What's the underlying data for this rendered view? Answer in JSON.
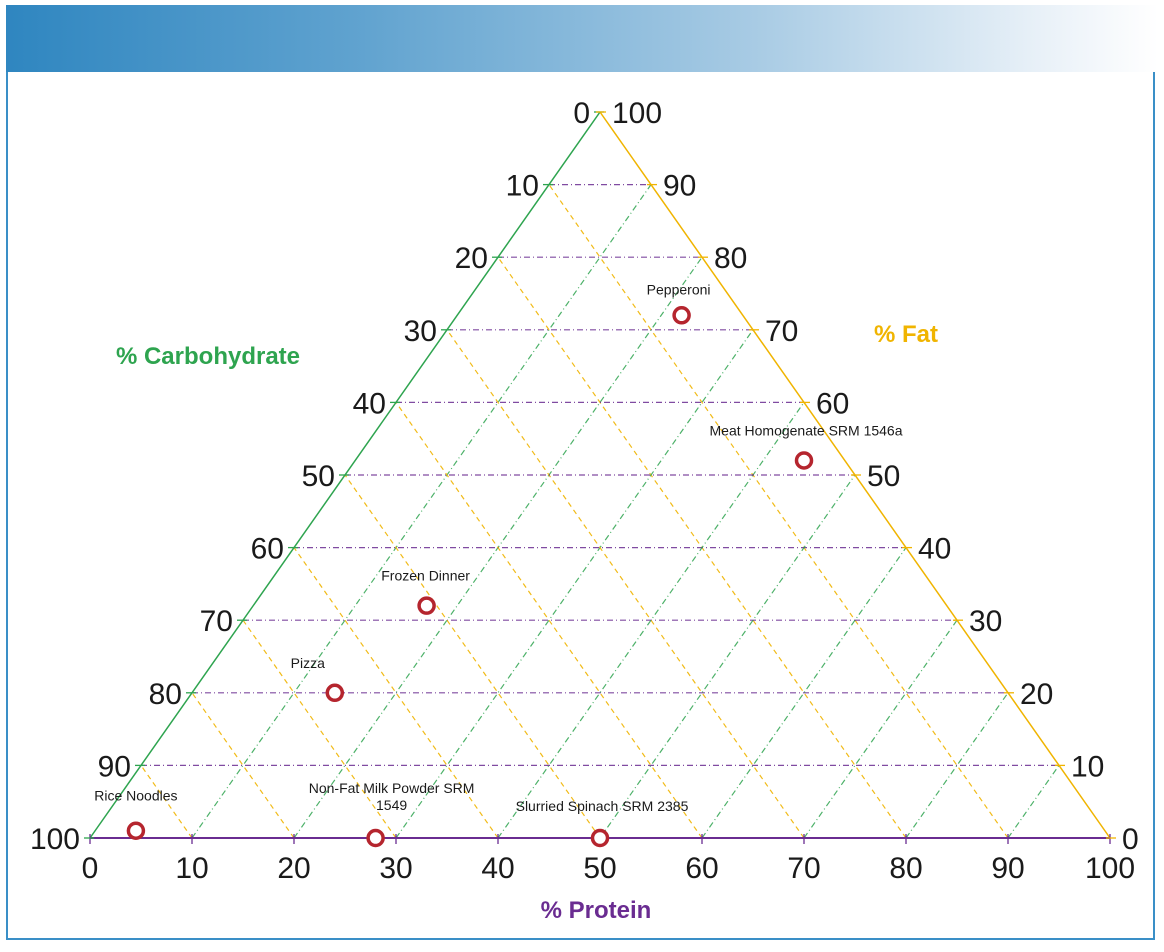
{
  "chart_data": {
    "type": "ternary",
    "axes": {
      "protein": {
        "label": "% Protein",
        "color": "#6a2c91",
        "ticks": [
          0,
          10,
          20,
          30,
          40,
          50,
          60,
          70,
          80,
          90,
          100
        ]
      },
      "carbohydrate": {
        "label": "% Carbohydrate",
        "color": "#2ea44f",
        "ticks": [
          0,
          10,
          20,
          30,
          40,
          50,
          60,
          70,
          80,
          90,
          100
        ]
      },
      "fat": {
        "label": "% Fat",
        "color": "#f0b400",
        "ticks": [
          0,
          10,
          20,
          30,
          40,
          50,
          60,
          70,
          80,
          90,
          100
        ]
      }
    },
    "grid": true,
    "points": [
      {
        "name": "Rice Noodles",
        "label_lines": [
          "Rice Noodles"
        ],
        "protein": 4,
        "fat": 1,
        "carbohydrate": 95
      },
      {
        "name": "Non-Fat Milk Powder SRM 1549",
        "label_lines": [
          "Non-Fat Milk Powder SRM",
          "1549"
        ],
        "protein": 28,
        "fat": 0,
        "carbohydrate": 72
      },
      {
        "name": "Slurried Spinach SRM 2385",
        "label_lines": [
          "Slurried Spinach SRM 2385"
        ],
        "protein": 50,
        "fat": 0,
        "carbohydrate": 50
      },
      {
        "name": "Pizza",
        "label_lines": [
          "Pizza"
        ],
        "protein": 14,
        "fat": 20,
        "carbohydrate": 66
      },
      {
        "name": "Frozen Dinner",
        "label_lines": [
          "Frozen Dinner"
        ],
        "protein": 17,
        "fat": 32,
        "carbohydrate": 51
      },
      {
        "name": "Pepperoni",
        "label_lines": [
          "Pepperoni"
        ],
        "protein": 22,
        "fat": 72,
        "carbohydrate": 6
      },
      {
        "name": "Meat Homogenate SRM 1546a",
        "label_lines": [
          "Meat Homogenate SRM 1546a"
        ],
        "protein": 44,
        "fat": 52,
        "carbohydrate": 4
      }
    ],
    "marker_color": "#b5252e"
  }
}
